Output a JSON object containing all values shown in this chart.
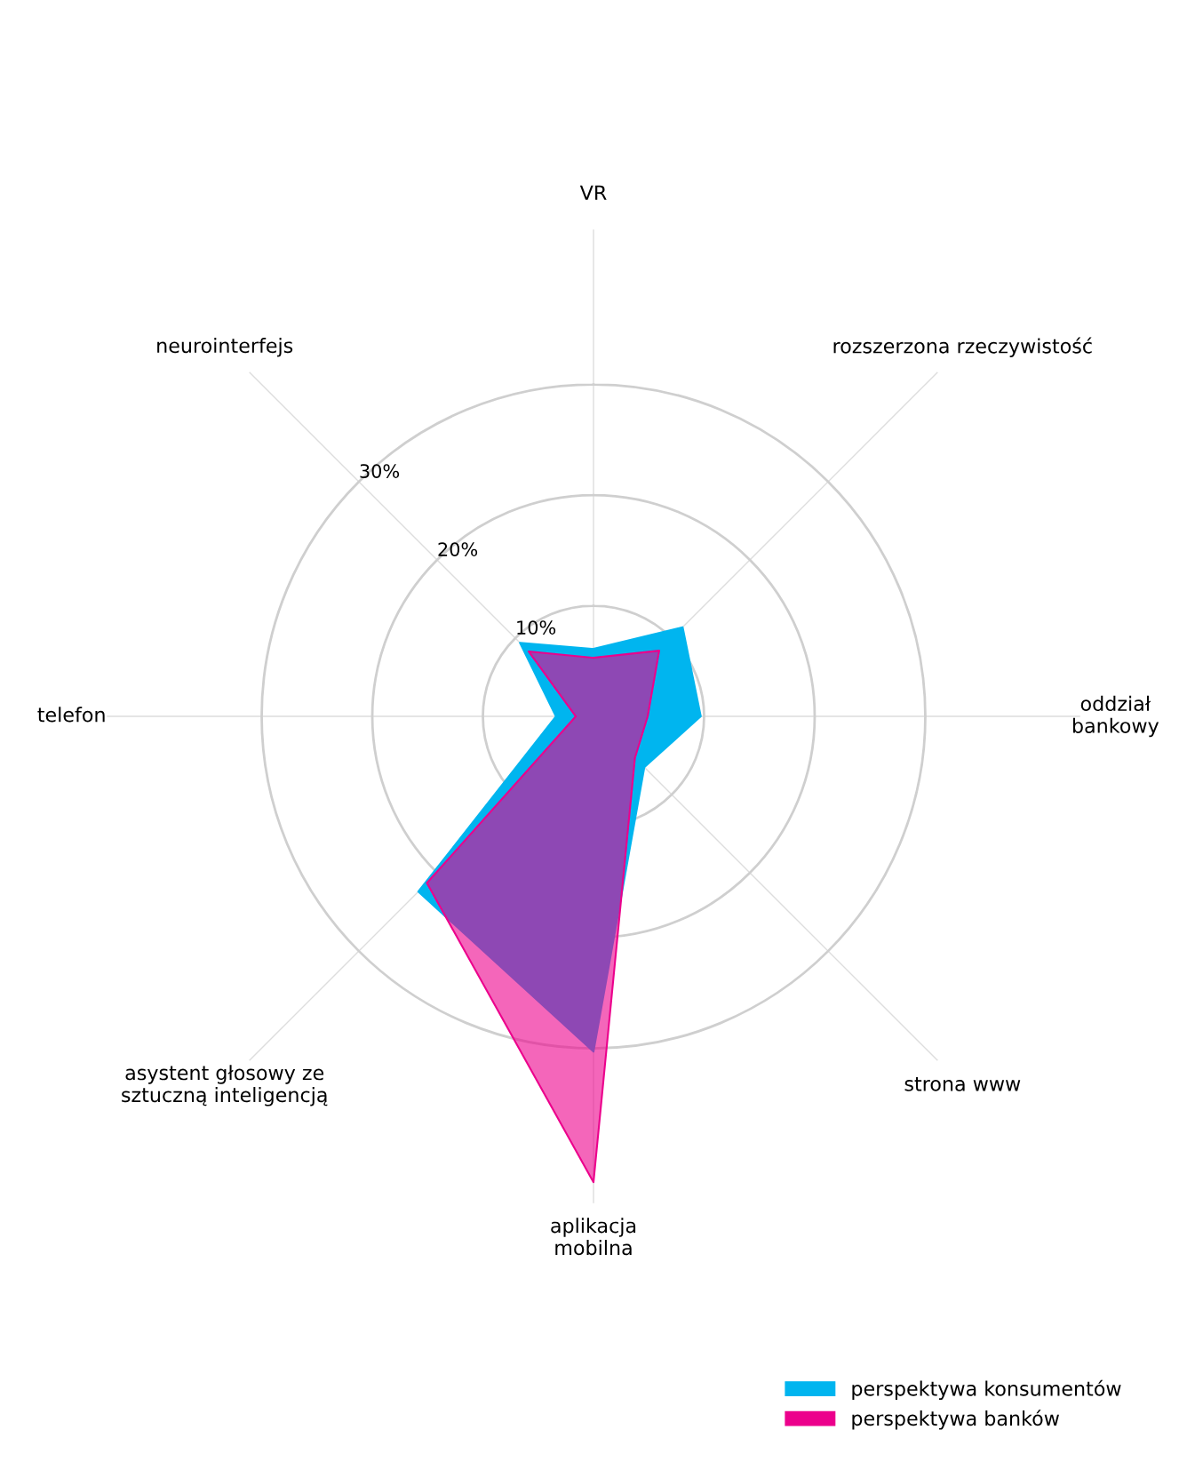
{
  "chart_data": {
    "type": "radar",
    "categories": [
      "VR",
      "rozszerzona rzeczywistość",
      "oddział\nbankowy",
      "strona www",
      "aplikacja\nmobilna",
      "asystent głosowy ze\nsztuczną inteligencją",
      "telefon",
      "neurointerfejs"
    ],
    "series": [
      {
        "name": "perspektywa konsumentów",
        "color": "#00b5ef",
        "values": [
          6.1,
          11.4,
          9.7,
          6.5,
          30.3,
          22.4,
          3.4,
          9.4
        ]
      },
      {
        "name": "perspektywa banków",
        "color": "#ec008c",
        "values": [
          5.3,
          8.4,
          4.9,
          5.3,
          42.1,
          21.3,
          1.6,
          8.3
        ]
      }
    ],
    "ylim": [
      0,
      44
    ],
    "yticks": [
      {
        "value": 10,
        "label": "10%"
      },
      {
        "value": 20,
        "label": "20%"
      },
      {
        "value": 30,
        "label": "30%"
      }
    ],
    "grid": true,
    "legend": "bottom right"
  }
}
